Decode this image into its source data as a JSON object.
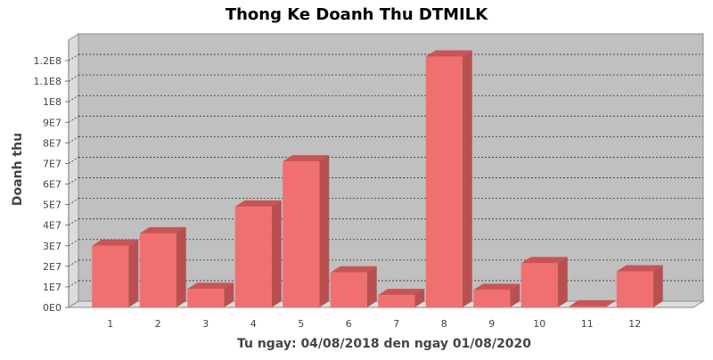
{
  "chart_data": {
    "type": "bar",
    "title": "Thong Ke Doanh Thu DTMILK",
    "xlabel": "Tu ngay: 04/08/2018 den ngay 01/08/2020",
    "ylabel": "Doanh thu",
    "categories": [
      "1",
      "2",
      "3",
      "4",
      "5",
      "6",
      "7",
      "8",
      "9",
      "10",
      "11",
      "12"
    ],
    "values": [
      30000000,
      36000000,
      9000000,
      49000000,
      71000000,
      17000000,
      6000000,
      122000000,
      8500000,
      21500000,
      500000,
      17500000
    ],
    "ylim": [
      0,
      130000000
    ],
    "yticks": [
      0,
      10000000,
      20000000,
      30000000,
      40000000,
      50000000,
      60000000,
      70000000,
      80000000,
      90000000,
      100000000,
      110000000,
      120000000
    ],
    "ytick_labels": [
      "0E0",
      "1E7",
      "2E7",
      "3E7",
      "4E7",
      "5E7",
      "6E7",
      "7E7",
      "8E7",
      "9E7",
      "1E8",
      "1.1E8",
      "1.2E8"
    ],
    "grid": true,
    "legend": "none",
    "colors": {
      "bar_front": "#f07070",
      "bar_top": "#c85454",
      "bar_side": "#b85050",
      "plot_bg": "#c0c0c0",
      "wall": "#dcdcdc"
    }
  }
}
